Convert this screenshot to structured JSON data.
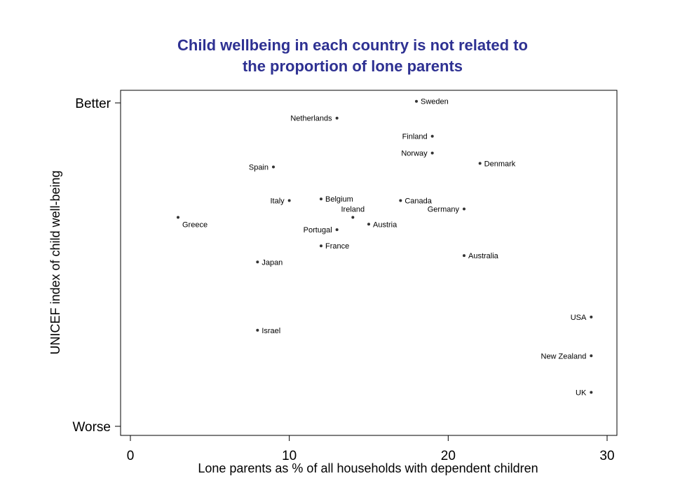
{
  "chart_data": {
    "type": "scatter",
    "title_line1": "Child wellbeing in each country is not related to",
    "title_line2": "the proportion of lone parents",
    "xlabel": "Lone parents as % of all households with dependent children",
    "ylabel": "UNICEF index of child well-being",
    "xlim": [
      0,
      30
    ],
    "xticks": [
      "0",
      "10",
      "20",
      "30"
    ],
    "ylim": [
      0,
      100
    ],
    "yticks": [
      {
        "label": "Better",
        "value": 100
      },
      {
        "label": "Worse",
        "value": 0
      }
    ],
    "grid": false,
    "points": [
      {
        "label": "Sweden",
        "x": 18,
        "y": 100.5,
        "side": "right"
      },
      {
        "label": "Netherlands",
        "x": 13,
        "y": 95.3,
        "side": "left"
      },
      {
        "label": "Finland",
        "x": 19,
        "y": 89.7,
        "side": "left"
      },
      {
        "label": "Norway",
        "x": 19,
        "y": 84.5,
        "side": "left"
      },
      {
        "label": "Denmark",
        "x": 22,
        "y": 81.3,
        "side": "right"
      },
      {
        "label": "Spain",
        "x": 9,
        "y": 80.2,
        "side": "left"
      },
      {
        "label": "Italy",
        "x": 10,
        "y": 69.8,
        "side": "left"
      },
      {
        "label": "Belgium",
        "x": 12,
        "y": 70.3,
        "side": "right"
      },
      {
        "label": "Canada",
        "x": 17,
        "y": 69.8,
        "side": "right"
      },
      {
        "label": "Ireland",
        "x": 14,
        "y": 64.6,
        "side": "above"
      },
      {
        "label": "Germany",
        "x": 21,
        "y": 67.2,
        "side": "left"
      },
      {
        "label": "Greece",
        "x": 3,
        "y": 64.6,
        "side": "below"
      },
      {
        "label": "Austria",
        "x": 15,
        "y": 62.5,
        "side": "right"
      },
      {
        "label": "Portugal",
        "x": 13,
        "y": 60.8,
        "side": "left"
      },
      {
        "label": "France",
        "x": 12,
        "y": 55.8,
        "side": "right"
      },
      {
        "label": "Australia",
        "x": 21,
        "y": 52.8,
        "side": "right"
      },
      {
        "label": "Japan",
        "x": 8,
        "y": 50.8,
        "side": "right"
      },
      {
        "label": "USA",
        "x": 29,
        "y": 33.8,
        "side": "left"
      },
      {
        "label": "Israel",
        "x": 8,
        "y": 29.7,
        "side": "right"
      },
      {
        "label": "New Zealand",
        "x": 29,
        "y": 21.8,
        "side": "left"
      },
      {
        "label": "UK",
        "x": 29,
        "y": 10.5,
        "side": "left"
      }
    ]
  }
}
